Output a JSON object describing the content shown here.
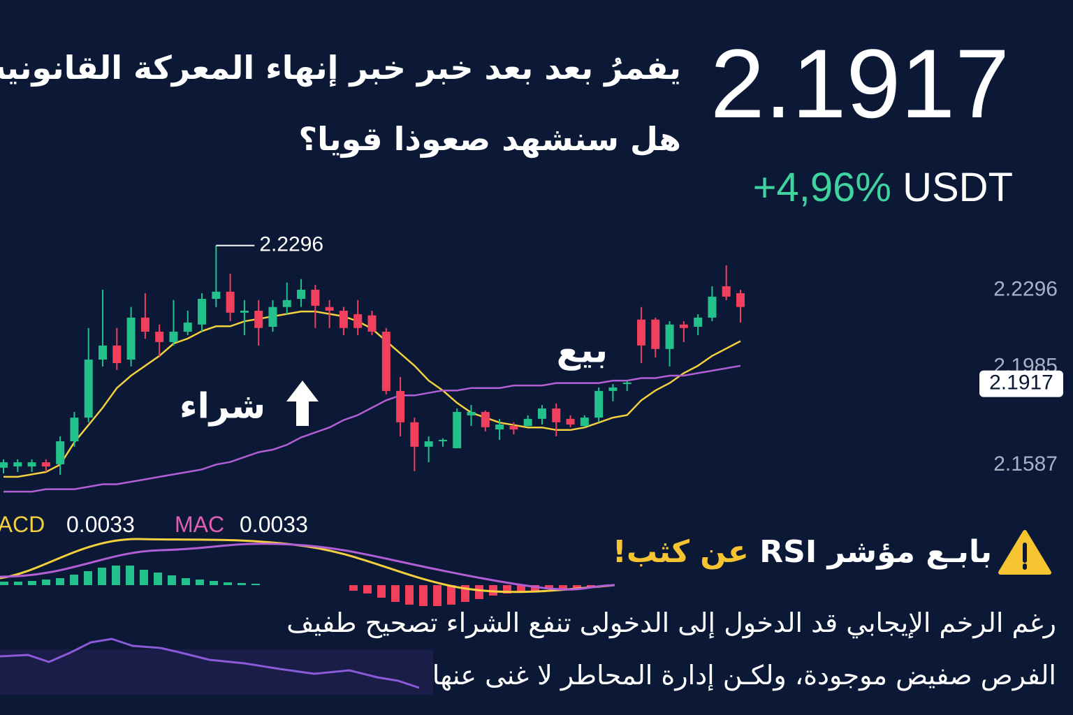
{
  "header": {
    "title_lines": [
      "يفمرُ بعد بعد خبر خبر إنهاء المعركة القانونية",
      "هل سنشهد صعوذا قويا؟"
    ],
    "price": "2.1917",
    "change": "+4,96%",
    "currency": "USDT"
  },
  "chart_data": {
    "type": "candlestick",
    "open": [
      2.1577,
      2.1582,
      2.1582,
      2.1599,
      2.1591,
      2.1684,
      2.178,
      2.2015,
      2.2072,
      2.2015,
      2.2185,
      2.2128,
      2.2086,
      2.2128,
      2.2157,
      2.2261,
      2.229,
      2.2205,
      2.2213,
      2.2148,
      2.2228,
      2.2261,
      2.2298,
      2.2228,
      2.2213,
      2.2199,
      2.2194,
      2.2128,
      2.1888,
      2.1761,
      2.1662,
      2.1684,
      2.1656,
      2.1789,
      2.1803,
      2.1732,
      2.1746,
      2.1746,
      2.1775,
      2.1817,
      2.1775,
      2.1746,
      2.178,
      2.1888,
      2.1916,
      2.2177,
      2.2177,
      2.2058,
      2.2157,
      2.2148,
      2.2185,
      2.2312,
      2.2284
    ],
    "high": [
      2.1611,
      2.1611,
      2.1611,
      2.1611,
      2.1704,
      2.1803,
      2.2143,
      2.2298,
      2.2143,
      2.2228,
      2.2284,
      2.2157,
      2.2256,
      2.2213,
      2.2284,
      2.2477,
      2.2363,
      2.2256,
      2.2256,
      2.2256,
      2.2327,
      2.2341,
      2.2318,
      2.2256,
      2.2228,
      2.2256,
      2.2213,
      2.2143,
      2.1945,
      2.178,
      2.1704,
      2.1696,
      2.1817,
      2.1831,
      2.1809,
      2.1775,
      2.1761,
      2.1789,
      2.1831,
      2.1837,
      2.1789,
      2.1789,
      2.1902,
      2.1916,
      2.193,
      2.2228,
      2.2185,
      2.2171,
      2.2171,
      2.2199,
      2.2312,
      2.2397,
      2.2298
    ],
    "low": [
      2.1554,
      2.156,
      2.156,
      2.156,
      2.1548,
      2.1662,
      2.1761,
      2.1987,
      2.1973,
      2.1987,
      2.21,
      2.2029,
      2.2072,
      2.2114,
      2.2128,
      2.2228,
      2.2171,
      2.2114,
      2.2072,
      2.2128,
      2.2199,
      2.2228,
      2.2143,
      2.2143,
      2.2114,
      2.2114,
      2.2114,
      2.1874,
      2.1704,
      2.1563,
      2.1599,
      2.1662,
      2.1656,
      2.1746,
      2.1724,
      2.169,
      2.1712,
      2.1741,
      2.1752,
      2.1704,
      2.1741,
      2.1741,
      2.1761,
      2.1846,
      2.1888,
      2.2001,
      2.2024,
      2.1987,
      2.2086,
      2.2114,
      2.2171,
      2.2256,
      2.2165
    ],
    "close": [
      2.1599,
      2.1599,
      2.1599,
      2.1582,
      2.1684,
      2.178,
      2.2015,
      2.2072,
      2.2001,
      2.2185,
      2.2128,
      2.2086,
      2.2128,
      2.2165,
      2.2261,
      2.229,
      2.2205,
      2.2213,
      2.2143,
      2.2228,
      2.2256,
      2.2298,
      2.2233,
      2.2213,
      2.2143,
      2.2143,
      2.2128,
      2.1888,
      2.1761,
      2.1662,
      2.1684,
      2.169,
      2.1803,
      2.1803,
      2.1741,
      2.1752,
      2.1732,
      2.1775,
      2.1817,
      2.1761,
      2.1752,
      2.178,
      2.1888,
      2.1902,
      2.1922,
      2.2072,
      2.2058,
      2.2157,
      2.2143,
      2.2185,
      2.227,
      2.227,
      2.2228
    ],
    "up_color": "#22c08a",
    "down_color": "#f0405e",
    "lines": [
      {
        "color": "#f4d03f",
        "values": [
          2.154,
          2.154,
          2.155,
          2.156,
          2.159,
          2.168,
          2.175,
          2.182,
          2.19,
          2.195,
          2.199,
          2.203,
          2.208,
          2.21,
          2.213,
          2.215,
          2.215,
          2.217,
          2.218,
          2.219,
          2.22,
          2.221,
          2.221,
          2.22,
          2.219,
          2.217,
          2.214,
          2.209,
          2.204,
          2.199,
          2.193,
          2.189,
          2.184,
          2.18,
          2.178,
          2.176,
          2.175,
          2.174,
          2.174,
          2.173,
          2.173,
          2.174,
          2.176,
          2.178,
          2.179,
          2.185,
          2.189,
          2.192,
          2.196,
          2.199,
          2.203,
          2.206,
          2.209
        ]
      },
      {
        "color": "#b25fd6",
        "values": [
          2.148,
          2.148,
          2.148,
          2.149,
          2.149,
          2.149,
          2.15,
          2.151,
          2.151,
          2.152,
          2.153,
          2.154,
          2.155,
          2.156,
          2.157,
          2.159,
          2.16,
          2.162,
          2.164,
          2.165,
          2.167,
          2.17,
          2.172,
          2.174,
          2.177,
          2.179,
          2.182,
          2.185,
          2.187,
          2.187,
          2.188,
          2.189,
          2.189,
          2.19,
          2.19,
          2.19,
          2.191,
          2.191,
          2.191,
          2.192,
          2.192,
          2.192,
          2.192,
          2.193,
          2.193,
          2.194,
          2.194,
          2.195,
          2.195,
          2.196,
          2.197,
          2.198,
          2.199
        ]
      }
    ],
    "ylim": [
      2.152,
      2.251
    ],
    "yticks": [
      2.2296,
      2.1985,
      2.1587
    ],
    "grid": false,
    "current_price": 2.1917,
    "peak_label": "2.2296",
    "buy_label": "شراء",
    "sell_label": "بيع"
  },
  "macd": {
    "label": "MACD",
    "value": "0.0033",
    "signal_label": "MAC",
    "signal_value": "0.0033"
  },
  "rsi_note": {
    "title": "بابـع مؤشر RSI",
    "emphasis": "عن كثب!",
    "lines": [
      "رغم الرخم الإيجابي قد الدخول إلى الدخولى تنفع الشراء تصحيح طفيف",
      "الفرص صفيض موجودة، ولكـن إدارة المحاطر لا غنى عنها"
    ]
  }
}
